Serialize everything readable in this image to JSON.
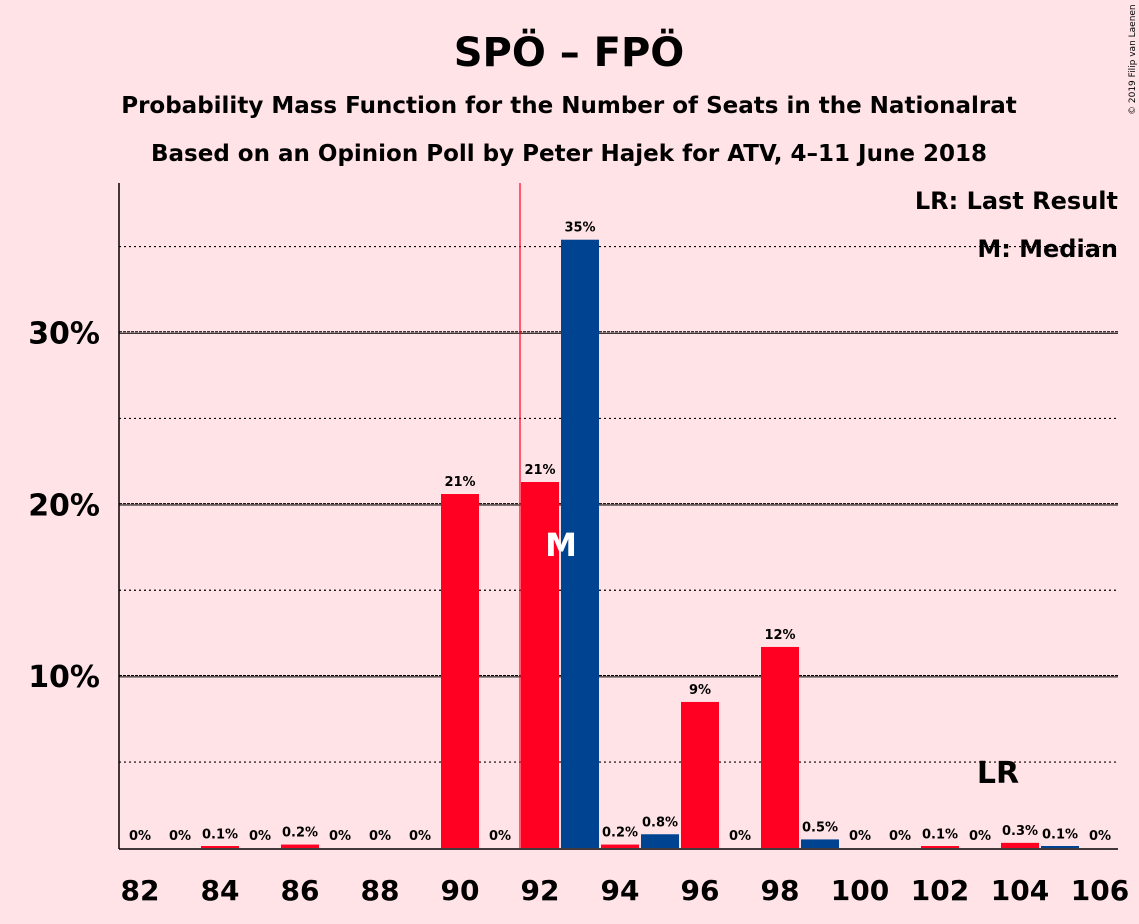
{
  "chart_data": {
    "type": "bar",
    "title": "SPÖ – FPÖ",
    "subtitle_lines": [
      "Probability Mass Function for the Number of Seats in the Nationalrat",
      "Based on an Opinion Poll by Peter Hajek for ATV, 4–11 June 2018"
    ],
    "copyright": "© 2019 Filip van Laenen",
    "x": [
      82,
      83,
      84,
      85,
      86,
      87,
      88,
      89,
      90,
      91,
      92,
      93,
      94,
      95,
      96,
      97,
      98,
      99,
      100,
      101,
      102,
      103,
      104,
      105,
      106
    ],
    "values": [
      0,
      0,
      0.1,
      0,
      0.2,
      0,
      0,
      0,
      20.6,
      0,
      21.3,
      35.4,
      0.2,
      0.8,
      8.5,
      0,
      11.7,
      0.5,
      0,
      0,
      0.1,
      0,
      0.3,
      0.1,
      0
    ],
    "labels": [
      "0%",
      "0%",
      "0.1%",
      "0%",
      "0.2%",
      "0%",
      "0%",
      "0%",
      "21%",
      "0%",
      "21%",
      "35%",
      "0.2%",
      "0.8%",
      "9%",
      "0%",
      "12%",
      "0.5%",
      "0%",
      "0%",
      "0.1%",
      "0%",
      "0.3%",
      "0.1%",
      "0%"
    ],
    "x_tick_labels": [
      "82",
      "84",
      "86",
      "88",
      "90",
      "92",
      "94",
      "96",
      "98",
      "100",
      "102",
      "104",
      "106"
    ],
    "y_tick_labels": [
      "10%",
      "20%",
      "30%"
    ],
    "y_ticks": [
      10,
      20,
      30
    ],
    "y_minor_ticks": [
      5,
      15,
      25,
      35
    ],
    "ylim": [
      0,
      38.7
    ],
    "xlim": [
      81.5,
      106.5
    ],
    "grid": true,
    "colors": {
      "spo": "#FF0022",
      "fpo": "#004391",
      "background": "#FFE3E6",
      "last_result_line": "#FF0022"
    },
    "median_seat": 93,
    "median_marker": "M",
    "last_result_seat": 104,
    "last_result_marker": "LR",
    "last_result_line_x": 91.5,
    "legend": {
      "position": "top-right",
      "items": [
        "LR: Last Result",
        "M: Median"
      ]
    }
  }
}
